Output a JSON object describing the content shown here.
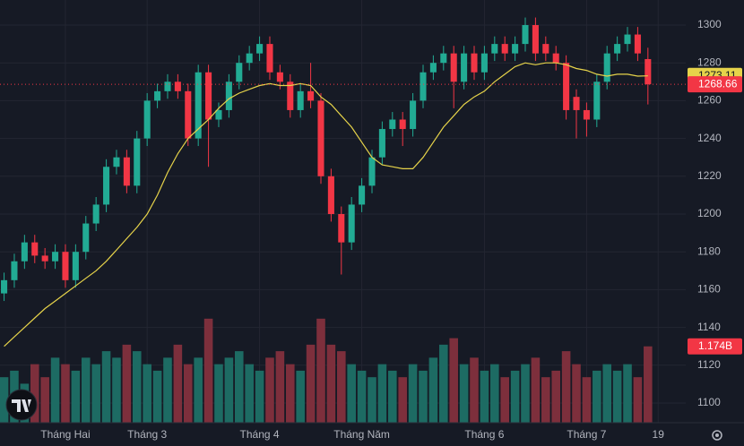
{
  "chart_data": {
    "type": "candlestick",
    "open": [
      1158,
      1165,
      1175,
      1185,
      1178,
      1175,
      1180,
      1165,
      1180,
      1195,
      1205,
      1225,
      1230,
      1215,
      1240,
      1260,
      1265,
      1270,
      1265,
      1240,
      1275,
      1250,
      1255,
      1270,
      1280,
      1285,
      1290,
      1275,
      1270,
      1255,
      1265,
      1260,
      1220,
      1200,
      1185,
      1205,
      1215,
      1230,
      1245,
      1250,
      1245,
      1260,
      1275,
      1280,
      1285,
      1270,
      1285,
      1275,
      1285,
      1290,
      1285,
      1290,
      1300,
      1290,
      1285,
      1280,
      1262,
      1255,
      1250,
      1270,
      1285,
      1290,
      1295,
      1282
    ],
    "high": [
      1169,
      1179,
      1189,
      1189,
      1182,
      1184,
      1184,
      1184,
      1199,
      1209,
      1229,
      1234,
      1234,
      1244,
      1264,
      1269,
      1274,
      1274,
      1269,
      1279,
      1279,
      1259,
      1274,
      1284,
      1289,
      1294,
      1294,
      1279,
      1274,
      1269,
      1280,
      1264,
      1224,
      1204,
      1209,
      1219,
      1234,
      1249,
      1254,
      1254,
      1264,
      1279,
      1284,
      1289,
      1289,
      1289,
      1289,
      1289,
      1294,
      1294,
      1294,
      1304,
      1304,
      1294,
      1289,
      1284,
      1266,
      1259,
      1274,
      1289,
      1294,
      1299,
      1299,
      1288
    ],
    "low": [
      1154,
      1161,
      1171,
      1174,
      1171,
      1171,
      1161,
      1161,
      1176,
      1191,
      1201,
      1221,
      1211,
      1211,
      1236,
      1256,
      1261,
      1261,
      1236,
      1236,
      1225,
      1246,
      1251,
      1266,
      1276,
      1281,
      1271,
      1266,
      1251,
      1251,
      1256,
      1216,
      1196,
      1168,
      1181,
      1201,
      1211,
      1226,
      1241,
      1236,
      1241,
      1256,
      1271,
      1276,
      1256,
      1266,
      1271,
      1271,
      1281,
      1281,
      1281,
      1286,
      1281,
      1281,
      1276,
      1250,
      1240,
      1241,
      1246,
      1266,
      1281,
      1286,
      1281,
      1258
    ],
    "close": [
      1165,
      1175,
      1185,
      1178,
      1175,
      1180,
      1165,
      1180,
      1195,
      1205,
      1225,
      1230,
      1215,
      1240,
      1260,
      1265,
      1270,
      1265,
      1240,
      1275,
      1250,
      1255,
      1270,
      1280,
      1285,
      1290,
      1275,
      1270,
      1255,
      1265,
      1260,
      1220,
      1200,
      1185,
      1205,
      1215,
      1230,
      1245,
      1250,
      1245,
      1260,
      1275,
      1280,
      1285,
      1270,
      1285,
      1275,
      1285,
      1290,
      1285,
      1290,
      1300,
      1285,
      1285,
      1280,
      1255,
      1255,
      1250,
      1270,
      1285,
      1290,
      1295,
      1285,
      1268.66
    ],
    "ma": {
      "color": "#e6d34a",
      "values": [
        1130,
        1135,
        1140,
        1145,
        1150,
        1154,
        1158,
        1162,
        1166,
        1170,
        1175,
        1181,
        1187,
        1193,
        1200,
        1210,
        1222,
        1232,
        1240,
        1245,
        1250,
        1256,
        1261,
        1264,
        1266,
        1268,
        1269,
        1268,
        1268,
        1269,
        1268,
        1262,
        1258,
        1252,
        1246,
        1238,
        1230,
        1226,
        1225,
        1224,
        1224,
        1230,
        1238,
        1246,
        1252,
        1258,
        1262,
        1265,
        1270,
        1274,
        1278,
        1280,
        1279,
        1280,
        1280,
        1279,
        1277,
        1276,
        1274,
        1273,
        1274,
        1274,
        1273,
        1273.11
      ]
    },
    "volume": {
      "axis": "y2",
      "values": [
        0.7,
        0.8,
        0.6,
        0.9,
        0.7,
        1.0,
        0.9,
        0.8,
        1.0,
        0.9,
        1.1,
        1.0,
        1.2,
        1.1,
        0.9,
        0.8,
        1.0,
        1.2,
        0.9,
        1.0,
        1.6,
        0.9,
        1.0,
        1.1,
        0.9,
        0.8,
        1.0,
        1.1,
        0.9,
        0.8,
        1.2,
        1.6,
        1.2,
        1.1,
        0.9,
        0.8,
        0.7,
        0.9,
        0.8,
        0.7,
        0.9,
        0.8,
        1.0,
        1.2,
        1.3,
        0.9,
        1.0,
        0.8,
        0.9,
        0.7,
        0.8,
        0.9,
        1.0,
        0.7,
        0.8,
        1.1,
        0.9,
        0.7,
        0.8,
        0.9,
        0.8,
        0.9,
        0.7,
        1.174
      ],
      "value_labels": [
        null,
        null,
        null,
        null,
        null,
        null,
        null,
        null,
        null,
        null,
        null,
        null,
        null,
        null,
        null,
        null,
        null,
        null,
        null,
        null,
        null,
        null,
        null,
        null,
        null,
        null,
        null,
        null,
        null,
        null,
        null,
        null,
        null,
        null,
        null,
        null,
        null,
        null,
        null,
        null,
        null,
        null,
        null,
        null,
        null,
        null,
        null,
        null,
        null,
        null,
        null,
        null,
        null,
        null,
        null,
        null,
        null,
        null,
        null,
        null,
        null,
        null,
        null,
        "1.174B"
      ]
    },
    "up_color": "#22ab94",
    "down_color": "#f23645",
    "volume_up_color": "#1d6b63",
    "volume_down_color": "#7d2f3c",
    "ylim": [
      1089.57,
      1313.27
    ],
    "yticks": [
      1100,
      1120,
      1140,
      1160,
      1180,
      1200,
      1220,
      1240,
      1260,
      1280,
      1300
    ],
    "y2lim": [
      0,
      6.5
    ],
    "xlim": [
      -0.4,
      66.7
    ],
    "xticks": [
      {
        "value": 6,
        "label": "Tháng Hai"
      },
      {
        "value": 14,
        "label": "Tháng 3"
      },
      {
        "value": 25,
        "label": "Tháng 4"
      },
      {
        "value": 35,
        "label": "Tháng Năm"
      },
      {
        "value": 47,
        "label": "Tháng 6"
      },
      {
        "value": 57,
        "label": "Tháng 7"
      },
      {
        "value": 64,
        "label": "19"
      }
    ],
    "grid": true
  }
}
